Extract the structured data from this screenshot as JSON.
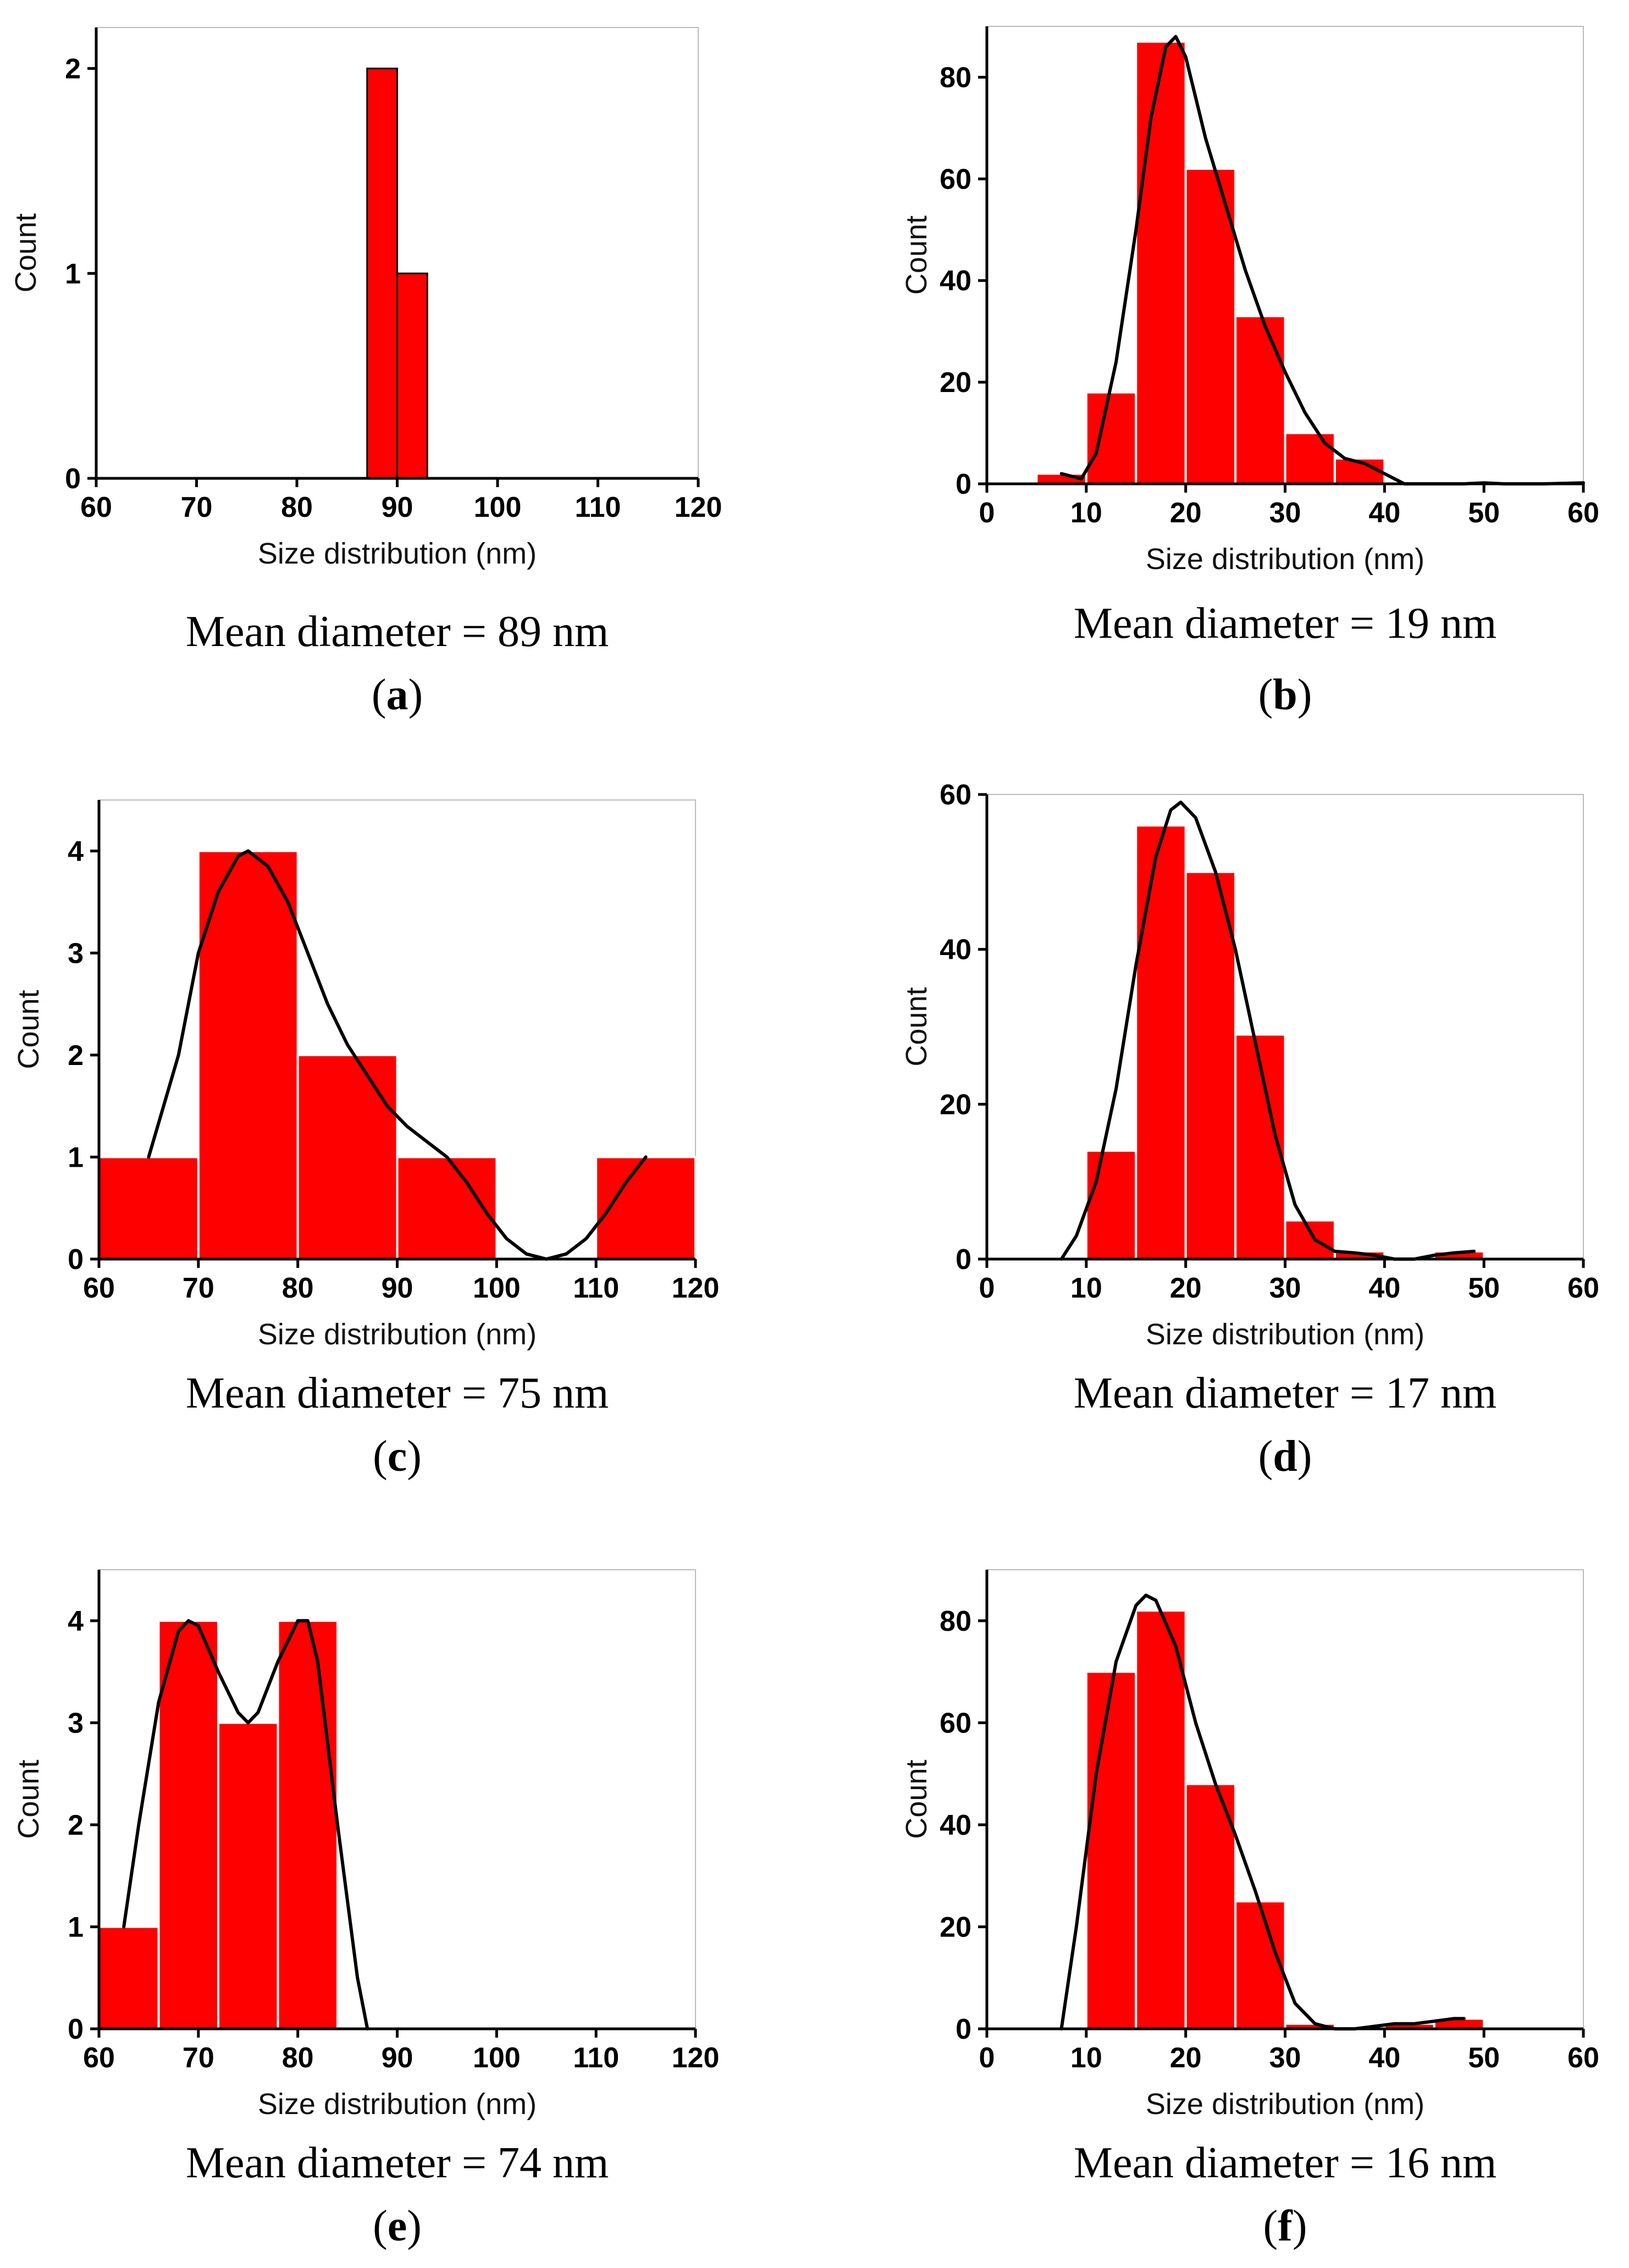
{
  "chart_data": [
    {
      "panel": "a",
      "type": "bar",
      "bins": [
        {
          "start": 87,
          "end": 90,
          "count": 2
        },
        {
          "start": 90,
          "end": 93,
          "count": 1
        }
      ],
      "curve": [],
      "xlim": [
        60,
        120
      ],
      "xticks": [
        60,
        70,
        80,
        90,
        100,
        110,
        120
      ],
      "ylim": [
        0,
        2.2
      ],
      "yticks": [
        0,
        1,
        2
      ],
      "xlabel": "Size distribution (nm)",
      "ylabel": "Count",
      "caption": "Mean diameter = 89 nm",
      "label_open": "(",
      "label": "a",
      "label_close": ")"
    },
    {
      "panel": "b",
      "type": "bar",
      "bins": [
        {
          "start": 5,
          "end": 10,
          "count": 2
        },
        {
          "start": 10,
          "end": 15,
          "count": 18
        },
        {
          "start": 15,
          "end": 20,
          "count": 87
        },
        {
          "start": 20,
          "end": 25,
          "count": 62
        },
        {
          "start": 25,
          "end": 30,
          "count": 33
        },
        {
          "start": 30,
          "end": 35,
          "count": 10
        },
        {
          "start": 35,
          "end": 40,
          "count": 5
        }
      ],
      "curve": [
        [
          7.5,
          2
        ],
        [
          9.5,
          1
        ],
        [
          11,
          6
        ],
        [
          13,
          24
        ],
        [
          15,
          50
        ],
        [
          16.5,
          72
        ],
        [
          18,
          86
        ],
        [
          19,
          88
        ],
        [
          20,
          84
        ],
        [
          21,
          76
        ],
        [
          22,
          68
        ],
        [
          24,
          55
        ],
        [
          26,
          42
        ],
        [
          28,
          31
        ],
        [
          30,
          22
        ],
        [
          32,
          14
        ],
        [
          34,
          8
        ],
        [
          36,
          5
        ],
        [
          38,
          4
        ],
        [
          40,
          2
        ],
        [
          42,
          0
        ],
        [
          44,
          0
        ],
        [
          48,
          0
        ],
        [
          50,
          0.2
        ],
        [
          52,
          0
        ],
        [
          56,
          0
        ],
        [
          60,
          0.2
        ]
      ],
      "xlim": [
        0,
        60
      ],
      "xticks": [
        0,
        10,
        20,
        30,
        40,
        50,
        60
      ],
      "ylim": [
        0,
        90
      ],
      "yticks": [
        0,
        20,
        40,
        60,
        80
      ],
      "xlabel": "Size distribution (nm)",
      "ylabel": "Count",
      "caption": "Mean diameter = 19 nm",
      "label_open": "(",
      "label": "b",
      "label_close": ")"
    },
    {
      "panel": "c",
      "type": "bar",
      "bins": [
        {
          "start": 60,
          "end": 70,
          "count": 1
        },
        {
          "start": 70,
          "end": 80,
          "count": 4
        },
        {
          "start": 80,
          "end": 90,
          "count": 2
        },
        {
          "start": 90,
          "end": 100,
          "count": 1
        },
        {
          "start": 110,
          "end": 120,
          "count": 1
        }
      ],
      "curve": [
        [
          65,
          1
        ],
        [
          68,
          2
        ],
        [
          70,
          3
        ],
        [
          72,
          3.6
        ],
        [
          74,
          3.95
        ],
        [
          75,
          4
        ],
        [
          77,
          3.85
        ],
        [
          79,
          3.5
        ],
        [
          81,
          3
        ],
        [
          83,
          2.5
        ],
        [
          85,
          2.1
        ],
        [
          87,
          1.8
        ],
        [
          89,
          1.5
        ],
        [
          91,
          1.3
        ],
        [
          93,
          1.15
        ],
        [
          95,
          1
        ],
        [
          97,
          0.75
        ],
        [
          99,
          0.45
        ],
        [
          101,
          0.2
        ],
        [
          103,
          0.05
        ],
        [
          105,
          0
        ],
        [
          107,
          0.05
        ],
        [
          109,
          0.2
        ],
        [
          111,
          0.45
        ],
        [
          113,
          0.75
        ],
        [
          115,
          1
        ]
      ],
      "xlim": [
        60,
        120
      ],
      "xticks": [
        60,
        70,
        80,
        90,
        100,
        110,
        120
      ],
      "ylim": [
        0,
        4.5
      ],
      "yticks": [
        0,
        1,
        2,
        3,
        4
      ],
      "xlabel": "Size distribution (nm)",
      "ylabel": "Count",
      "caption": "Mean diameter = 75 nm",
      "label_open": "(",
      "label": "c",
      "label_close": ")"
    },
    {
      "panel": "d",
      "type": "bar",
      "bins": [
        {
          "start": 10,
          "end": 15,
          "count": 14
        },
        {
          "start": 15,
          "end": 20,
          "count": 56
        },
        {
          "start": 20,
          "end": 25,
          "count": 50
        },
        {
          "start": 25,
          "end": 30,
          "count": 29
        },
        {
          "start": 30,
          "end": 35,
          "count": 5
        },
        {
          "start": 35,
          "end": 40,
          "count": 1
        },
        {
          "start": 45,
          "end": 50,
          "count": 1
        }
      ],
      "curve": [
        [
          7.5,
          0
        ],
        [
          9,
          3
        ],
        [
          11,
          10
        ],
        [
          13,
          22
        ],
        [
          15,
          38
        ],
        [
          17,
          52
        ],
        [
          18.5,
          58
        ],
        [
          19.5,
          59
        ],
        [
          21,
          57
        ],
        [
          23,
          50
        ],
        [
          25,
          40
        ],
        [
          27,
          28
        ],
        [
          29,
          16
        ],
        [
          31,
          7
        ],
        [
          33,
          2.5
        ],
        [
          35,
          1
        ],
        [
          37,
          0.8
        ],
        [
          39,
          0.5
        ],
        [
          41,
          0
        ],
        [
          43,
          0
        ],
        [
          45,
          0.5
        ],
        [
          47,
          0.8
        ],
        [
          49,
          1
        ]
      ],
      "xlim": [
        0,
        60
      ],
      "xticks": [
        0,
        10,
        20,
        30,
        40,
        50,
        60
      ],
      "ylim": [
        0,
        60
      ],
      "yticks": [
        0,
        20,
        40,
        60
      ],
      "xlabel": "Size distribution (nm)",
      "ylabel": "Count",
      "caption": "Mean diameter = 17 nm",
      "label_open": "(",
      "label": "d",
      "label_close": ")"
    },
    {
      "panel": "e",
      "type": "bar",
      "bins": [
        {
          "start": 60,
          "end": 66,
          "count": 1
        },
        {
          "start": 66,
          "end": 72,
          "count": 4
        },
        {
          "start": 72,
          "end": 78,
          "count": 3
        },
        {
          "start": 78,
          "end": 84,
          "count": 4
        }
      ],
      "curve": [
        [
          62.5,
          1
        ],
        [
          64,
          2
        ],
        [
          66,
          3.2
        ],
        [
          68,
          3.9
        ],
        [
          69,
          4
        ],
        [
          70,
          3.95
        ],
        [
          72,
          3.5
        ],
        [
          74,
          3.1
        ],
        [
          75,
          3
        ],
        [
          76,
          3.1
        ],
        [
          78,
          3.6
        ],
        [
          80,
          4
        ],
        [
          81,
          4
        ],
        [
          82,
          3.6
        ],
        [
          84,
          2
        ],
        [
          86,
          0.5
        ],
        [
          87,
          0
        ]
      ],
      "xlim": [
        60,
        120
      ],
      "xticks": [
        60,
        70,
        80,
        90,
        100,
        110,
        120
      ],
      "ylim": [
        0,
        4.5
      ],
      "yticks": [
        0,
        1,
        2,
        3,
        4
      ],
      "xlabel": "Size distribution (nm)",
      "ylabel": "Count",
      "caption": "Mean diameter = 74 nm",
      "label_open": "(",
      "label": "e",
      "label_close": ")"
    },
    {
      "panel": "f",
      "type": "bar",
      "bins": [
        {
          "start": 10,
          "end": 15,
          "count": 70
        },
        {
          "start": 15,
          "end": 20,
          "count": 82
        },
        {
          "start": 20,
          "end": 25,
          "count": 48
        },
        {
          "start": 25,
          "end": 30,
          "count": 25
        },
        {
          "start": 30,
          "end": 35,
          "count": 1
        },
        {
          "start": 35,
          "end": 40,
          "count": 0
        },
        {
          "start": 40,
          "end": 45,
          "count": 1
        },
        {
          "start": 45,
          "end": 50,
          "count": 2
        }
      ],
      "curve": [
        [
          7.5,
          0
        ],
        [
          9,
          20
        ],
        [
          11,
          50
        ],
        [
          13,
          72
        ],
        [
          15,
          83
        ],
        [
          16,
          85
        ],
        [
          17,
          84
        ],
        [
          19,
          75
        ],
        [
          21,
          60
        ],
        [
          23,
          48
        ],
        [
          25,
          38
        ],
        [
          27,
          27
        ],
        [
          29,
          15
        ],
        [
          31,
          5
        ],
        [
          33,
          1
        ],
        [
          35,
          0
        ],
        [
          37,
          0
        ],
        [
          39,
          0.5
        ],
        [
          41,
          1
        ],
        [
          43,
          1
        ],
        [
          45,
          1.5
        ],
        [
          47,
          2
        ],
        [
          48,
          2
        ]
      ],
      "xlim": [
        0,
        60
      ],
      "xticks": [
        0,
        10,
        20,
        30,
        40,
        50,
        60
      ],
      "ylim": [
        0,
        90
      ],
      "yticks": [
        0,
        20,
        40,
        60,
        80
      ],
      "xlabel": "Size distribution (nm)",
      "ylabel": "Count",
      "caption": "Mean diameter = 16 nm",
      "label_open": "(",
      "label": "f",
      "label_close": ")"
    }
  ]
}
